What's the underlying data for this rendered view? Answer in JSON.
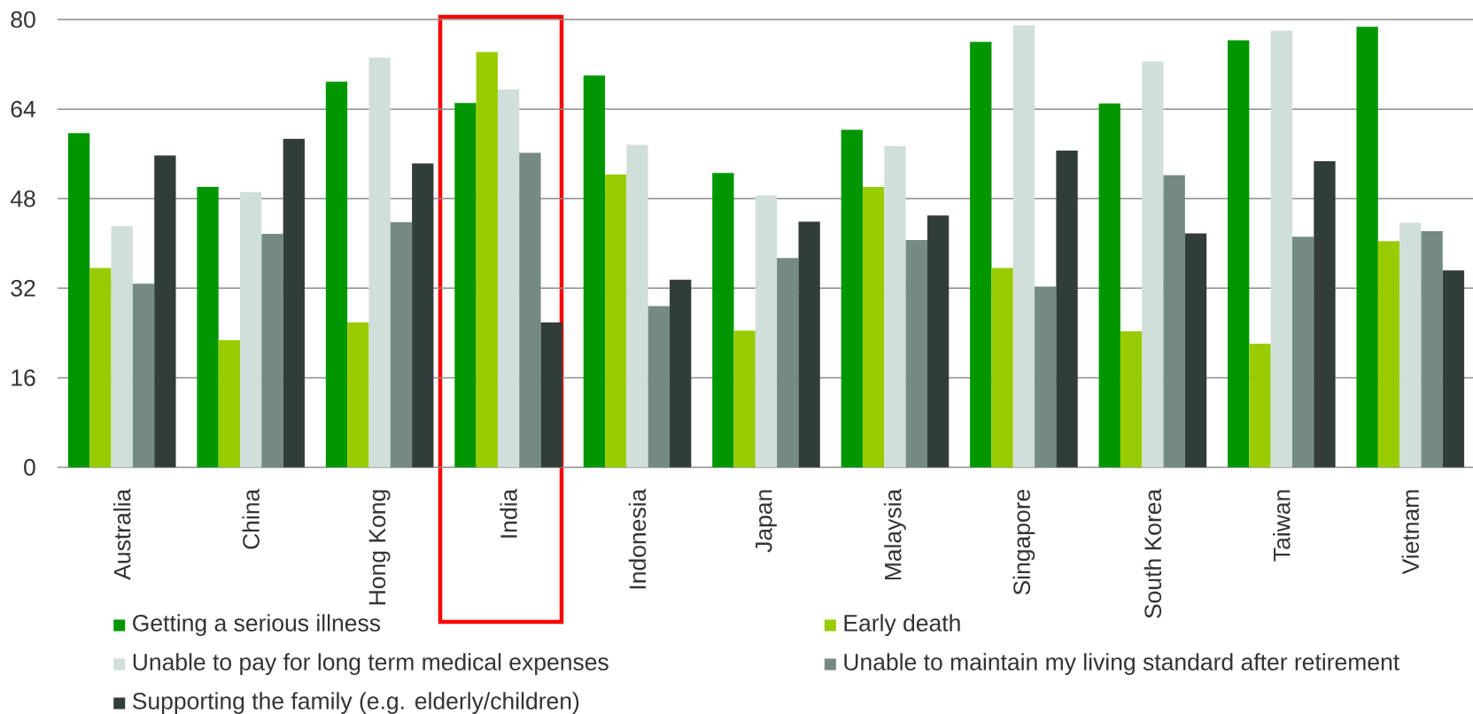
{
  "chart_data": {
    "type": "bar",
    "categories": [
      "Australia",
      "China",
      "Hong Kong",
      "India",
      "Indonesia",
      "Japan",
      "Malaysia",
      "Singapore",
      "South Korea",
      "Taiwan",
      "Vietnam"
    ],
    "series": [
      {
        "name": "Getting a serious illness",
        "color": "#009600",
        "values": [
          59.7,
          50.1,
          68.9,
          65.1,
          70.0,
          52.6,
          60.3,
          76.0,
          65.0,
          76.3,
          78.7
        ]
      },
      {
        "name": "Early death",
        "color": "#99cc00",
        "values": [
          35.6,
          22.7,
          25.9,
          74.2,
          52.3,
          24.4,
          50.1,
          35.6,
          24.3,
          22.1,
          40.4
        ]
      },
      {
        "name": "Unable to pay for long term medical expenses",
        "color": "#d0dfd9",
        "values": [
          43.1,
          49.2,
          73.2,
          67.5,
          57.6,
          48.6,
          57.4,
          79.0,
          72.5,
          78.0,
          43.7
        ]
      },
      {
        "name": "Unable to maintain my living standard after retirement",
        "color": "#758a84",
        "values": [
          32.8,
          41.7,
          43.8,
          56.2,
          28.8,
          37.4,
          40.6,
          32.3,
          52.2,
          41.2,
          42.2
        ]
      },
      {
        "name": "Supporting the family (e.g. elderly/children)",
        "color": "#313d3a",
        "values": [
          55.7,
          58.7,
          54.3,
          25.9,
          33.5,
          43.9,
          45.0,
          56.6,
          41.8,
          54.7,
          35.2
        ]
      }
    ],
    "ylim": [
      0,
      80
    ],
    "yticks": [
      0,
      16,
      32,
      48,
      64,
      80
    ],
    "grid": "y",
    "legend": "bottom"
  }
}
